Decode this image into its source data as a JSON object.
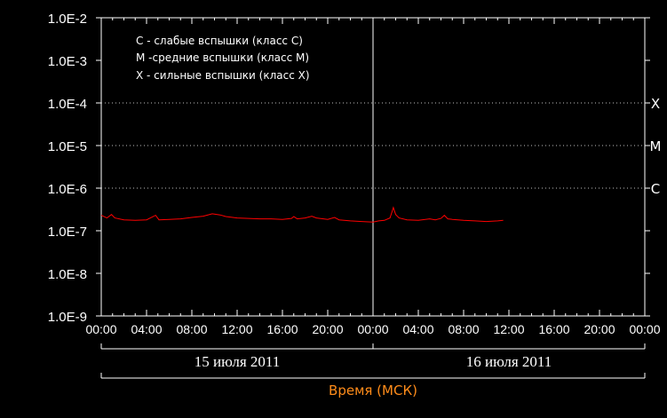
{
  "chart_data": {
    "type": "line",
    "scale": "log",
    "ylim": [
      1e-09,
      0.01
    ],
    "y_ticks": [
      "1.0E-2",
      "1.0E-3",
      "1.0E-4",
      "1.0E-5",
      "1.0E-6",
      "1.0E-7",
      "1.0E-8",
      "1.0E-9"
    ],
    "x_ticks": [
      "00:00",
      "04:00",
      "08:00",
      "12:00",
      "16:00",
      "20:00",
      "00:00",
      "04:00",
      "08:00",
      "12:00",
      "16:00",
      "20:00",
      "00:00"
    ],
    "xlim_hours": [
      0,
      48
    ],
    "dates": [
      "15 июля 2011",
      "16 июля 2011"
    ],
    "xlabel": "Время (МСК)",
    "legend": [
      "C - слабые вспышки (класс C)",
      "M -средние вспышки (класс M)",
      "X - сильные вспышки (класс X)"
    ],
    "class_levels": [
      {
        "label": "X",
        "value": 0.0001
      },
      {
        "label": "M",
        "value": 1e-05
      },
      {
        "label": "C",
        "value": 1e-06
      }
    ],
    "series": [
      {
        "color": "#ff0000",
        "points": [
          [
            0.0,
            2.3e-07
          ],
          [
            0.5,
            2e-07
          ],
          [
            0.9,
            2.4e-07
          ],
          [
            1.2,
            2e-07
          ],
          [
            2.0,
            1.8e-07
          ],
          [
            3.0,
            1.75e-07
          ],
          [
            4.0,
            1.8e-07
          ],
          [
            4.8,
            2.3e-07
          ],
          [
            5.1,
            1.8e-07
          ],
          [
            6.0,
            1.85e-07
          ],
          [
            7.0,
            1.9e-07
          ],
          [
            8.0,
            2.05e-07
          ],
          [
            9.0,
            2.2e-07
          ],
          [
            9.8,
            2.5e-07
          ],
          [
            10.5,
            2.35e-07
          ],
          [
            11.0,
            2.15e-07
          ],
          [
            12.0,
            2e-07
          ],
          [
            13.0,
            1.95e-07
          ],
          [
            14.0,
            1.9e-07
          ],
          [
            15.0,
            1.9e-07
          ],
          [
            16.0,
            1.85e-07
          ],
          [
            16.8,
            1.95e-07
          ],
          [
            17.0,
            2.15e-07
          ],
          [
            17.3,
            1.9e-07
          ],
          [
            18.0,
            2e-07
          ],
          [
            18.6,
            2.2e-07
          ],
          [
            19.0,
            2e-07
          ],
          [
            20.0,
            1.85e-07
          ],
          [
            20.6,
            2.05e-07
          ],
          [
            21.0,
            1.8e-07
          ],
          [
            22.0,
            1.7e-07
          ],
          [
            23.0,
            1.65e-07
          ],
          [
            24.0,
            1.6e-07
          ],
          [
            24.5,
            1.7e-07
          ],
          [
            25.0,
            1.75e-07
          ],
          [
            25.5,
            2e-07
          ],
          [
            25.8,
            3.5e-07
          ],
          [
            26.0,
            2.4e-07
          ],
          [
            26.3,
            2e-07
          ],
          [
            27.0,
            1.8e-07
          ],
          [
            28.0,
            1.75e-07
          ],
          [
            29.0,
            1.9e-07
          ],
          [
            29.5,
            1.8e-07
          ],
          [
            30.0,
            1.95e-07
          ],
          [
            30.3,
            2.3e-07
          ],
          [
            30.6,
            1.9e-07
          ],
          [
            31.0,
            1.85e-07
          ],
          [
            32.0,
            1.75e-07
          ],
          [
            33.0,
            1.7e-07
          ],
          [
            34.0,
            1.65e-07
          ],
          [
            35.0,
            1.7e-07
          ],
          [
            35.5,
            1.75e-07
          ]
        ]
      }
    ]
  }
}
